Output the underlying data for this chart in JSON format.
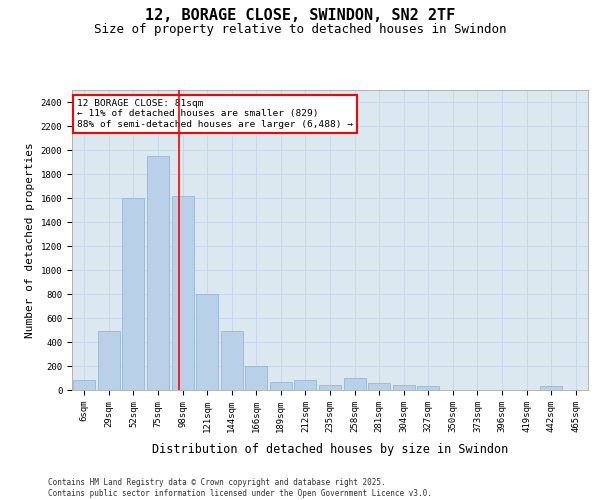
{
  "title": "12, BORAGE CLOSE, SWINDON, SN2 2TF",
  "subtitle": "Size of property relative to detached houses in Swindon",
  "xlabel": "Distribution of detached houses by size in Swindon",
  "ylabel": "Number of detached properties",
  "categories": [
    "6sqm",
    "29sqm",
    "52sqm",
    "75sqm",
    "98sqm",
    "121sqm",
    "144sqm",
    "166sqm",
    "189sqm",
    "212sqm",
    "235sqm",
    "258sqm",
    "281sqm",
    "304sqm",
    "327sqm",
    "350sqm",
    "373sqm",
    "396sqm",
    "419sqm",
    "442sqm",
    "465sqm"
  ],
  "values": [
    80,
    490,
    1600,
    1950,
    1620,
    800,
    490,
    200,
    70,
    80,
    40,
    100,
    60,
    40,
    30,
    0,
    0,
    0,
    0,
    30,
    0
  ],
  "bar_color": "#b8d0e8",
  "bar_edge_color": "#8ab0d0",
  "grid_color": "#c8d8e8",
  "background_color": "#dce8f0",
  "annotation_text": "12 BORAGE CLOSE: 81sqm\n← 11% of detached houses are smaller (829)\n88% of semi-detached houses are larger (6,488) →",
  "annotation_box_color": "white",
  "annotation_box_edge_color": "red",
  "vline_x_index": 3.85,
  "vline_color": "red",
  "ylim": [
    0,
    2500
  ],
  "yticks": [
    0,
    200,
    400,
    600,
    800,
    1000,
    1200,
    1400,
    1600,
    1800,
    2000,
    2200,
    2400
  ],
  "footer": "Contains HM Land Registry data © Crown copyright and database right 2025.\nContains public sector information licensed under the Open Government Licence v3.0.",
  "title_fontsize": 11,
  "subtitle_fontsize": 9,
  "tick_fontsize": 6.5,
  "ylabel_fontsize": 8,
  "xlabel_fontsize": 8.5,
  "footer_fontsize": 5.5
}
